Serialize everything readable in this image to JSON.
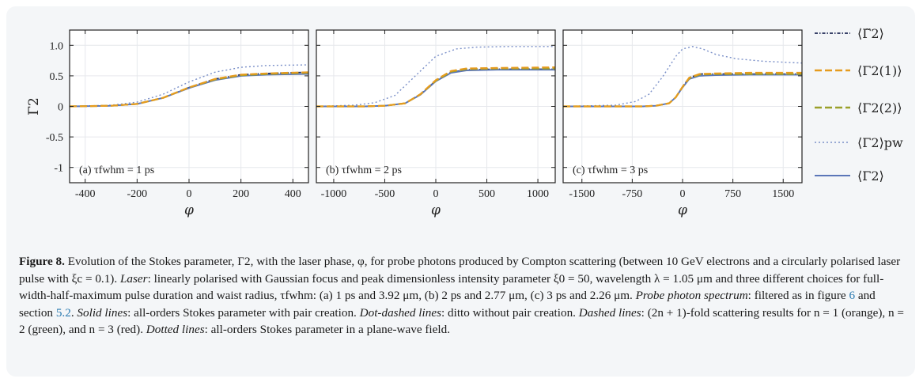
{
  "chart_data": [
    {
      "type": "line",
      "panel_label": "(a) τfwhm = 1 ps",
      "xlabel": "φ",
      "ylabel": "Γ2",
      "xlim": [
        -460,
        460
      ],
      "ylim": [
        -1.25,
        1.25
      ],
      "xticks": [
        -400,
        -200,
        0,
        200,
        400
      ],
      "xtick_labels": [
        "-400",
        "-200",
        "0",
        "200",
        "400"
      ],
      "yticks": [
        -1,
        -0.5,
        0,
        0.5,
        1
      ],
      "ytick_labels": [
        "-1",
        "-0.5",
        "0",
        "0.5",
        "1.0"
      ],
      "series": [
        {
          "name": "⟨Γ̃2⟩",
          "x": [
            -460,
            -300,
            -200,
            -100,
            0,
            100,
            200,
            300,
            460
          ],
          "y": [
            0,
            0.01,
            0.04,
            0.14,
            0.31,
            0.45,
            0.52,
            0.54,
            0.56
          ]
        },
        {
          "name": "⟨Γ2(1)⟩",
          "x": [
            -460,
            -300,
            -200,
            -100,
            0,
            100,
            200,
            300,
            460
          ],
          "y": [
            0,
            0.01,
            0.04,
            0.14,
            0.31,
            0.45,
            0.52,
            0.54,
            0.56
          ]
        },
        {
          "name": "⟨Γ2(2)⟩",
          "x": [
            -460,
            -300,
            -200,
            -100,
            0,
            100,
            200,
            300,
            460
          ],
          "y": [
            0,
            0.01,
            0.04,
            0.14,
            0.31,
            0.44,
            0.51,
            0.53,
            0.55
          ]
        },
        {
          "name": "⟨Γ2⟩pw",
          "x": [
            -460,
            -300,
            -200,
            -100,
            0,
            100,
            200,
            300,
            460
          ],
          "y": [
            0,
            0.02,
            0.07,
            0.2,
            0.4,
            0.56,
            0.64,
            0.67,
            0.68
          ]
        },
        {
          "name": "⟨Γ2⟩",
          "x": [
            -460,
            -300,
            -200,
            -100,
            0,
            100,
            200,
            300,
            460
          ],
          "y": [
            0,
            0.01,
            0.04,
            0.14,
            0.3,
            0.43,
            0.5,
            0.52,
            0.53
          ]
        }
      ]
    },
    {
      "type": "line",
      "panel_label": "(b) τfwhm = 2 ps",
      "xlabel": "φ",
      "ylabel": "",
      "xlim": [
        -1170,
        1170
      ],
      "ylim": [
        -1.25,
        1.25
      ],
      "xticks": [
        -1000,
        -500,
        0,
        500,
        1000
      ],
      "xtick_labels": [
        "-1000",
        "-500",
        "0",
        "500",
        "1000"
      ],
      "yticks": [
        -1,
        -0.5,
        0,
        0.5,
        1
      ],
      "ytick_labels": [],
      "series": [
        {
          "name": "⟨Γ̃2⟩",
          "x": [
            -1170,
            -700,
            -500,
            -300,
            -150,
            0,
            150,
            300,
            600,
            1170
          ],
          "y": [
            0,
            0,
            0.01,
            0.05,
            0.2,
            0.42,
            0.56,
            0.6,
            0.61,
            0.61
          ]
        },
        {
          "name": "⟨Γ2(1)⟩",
          "x": [
            -1170,
            -700,
            -500,
            -300,
            -150,
            0,
            150,
            300,
            600,
            1170
          ],
          "y": [
            0,
            0,
            0.01,
            0.05,
            0.2,
            0.43,
            0.58,
            0.62,
            0.63,
            0.64
          ]
        },
        {
          "name": "⟨Γ2(2)⟩",
          "x": [
            -1170,
            -700,
            -500,
            -300,
            -150,
            0,
            150,
            300,
            600,
            1170
          ],
          "y": [
            0,
            0,
            0.01,
            0.05,
            0.2,
            0.42,
            0.57,
            0.61,
            0.62,
            0.62
          ]
        },
        {
          "name": "⟨Γ2⟩pw",
          "x": [
            -1170,
            -800,
            -600,
            -400,
            -200,
            0,
            200,
            400,
            700,
            1170
          ],
          "y": [
            0,
            0.02,
            0.06,
            0.18,
            0.5,
            0.82,
            0.94,
            0.97,
            0.98,
            0.98
          ]
        },
        {
          "name": "⟨Γ2⟩",
          "x": [
            -1170,
            -700,
            -500,
            -300,
            -150,
            0,
            150,
            300,
            600,
            1170
          ],
          "y": [
            0,
            0,
            0.01,
            0.05,
            0.19,
            0.41,
            0.55,
            0.59,
            0.6,
            0.6
          ]
        }
      ]
    },
    {
      "type": "line",
      "panel_label": "(c) τfwhm = 3 ps",
      "xlabel": "φ",
      "ylabel": "",
      "xlim": [
        -1780,
        1780
      ],
      "ylim": [
        -1.25,
        1.25
      ],
      "xticks": [
        -1500,
        -750,
        0,
        750,
        1500
      ],
      "xtick_labels": [
        "-1500",
        "-750",
        "0",
        "750",
        "1500"
      ],
      "yticks": [
        -1,
        -0.5,
        0,
        0.5,
        1
      ],
      "ytick_labels": [],
      "series": [
        {
          "name": "⟨Γ̃2⟩",
          "x": [
            -1780,
            -600,
            -400,
            -200,
            -100,
            0,
            100,
            250,
            500,
            1000,
            1780
          ],
          "y": [
            0,
            0,
            0.01,
            0.05,
            0.15,
            0.32,
            0.47,
            0.53,
            0.53,
            0.53,
            0.53
          ]
        },
        {
          "name": "⟨Γ2(1)⟩",
          "x": [
            -1780,
            -600,
            -400,
            -200,
            -100,
            0,
            100,
            250,
            500,
            1000,
            1780
          ],
          "y": [
            0,
            0,
            0.01,
            0.05,
            0.15,
            0.32,
            0.47,
            0.53,
            0.54,
            0.55,
            0.55
          ]
        },
        {
          "name": "⟨Γ2(2)⟩",
          "x": [
            -1780,
            -600,
            -400,
            -200,
            -100,
            0,
            100,
            250,
            500,
            1000,
            1780
          ],
          "y": [
            0,
            0,
            0.01,
            0.05,
            0.15,
            0.32,
            0.46,
            0.52,
            0.53,
            0.53,
            0.53
          ]
        },
        {
          "name": "⟨Γ2⟩pw",
          "x": [
            -1780,
            -1000,
            -700,
            -500,
            -300,
            -100,
            0,
            150,
            300,
            500,
            800,
            1200,
            1780
          ],
          "y": [
            0,
            0.02,
            0.08,
            0.2,
            0.48,
            0.82,
            0.94,
            0.98,
            0.94,
            0.85,
            0.78,
            0.74,
            0.71
          ]
        },
        {
          "name": "⟨Γ2⟩",
          "x": [
            -1780,
            -600,
            -400,
            -200,
            -100,
            0,
            100,
            250,
            500,
            1000,
            1780
          ],
          "y": [
            0,
            0,
            0.01,
            0.05,
            0.15,
            0.31,
            0.45,
            0.5,
            0.51,
            0.52,
            0.52
          ]
        }
      ]
    }
  ],
  "legend": [
    {
      "label": "⟨Γ̃2⟩",
      "color": "#1f2a55",
      "dash": "dotdash"
    },
    {
      "label": "⟨Γ2(1)⟩",
      "color": "#e69b1e",
      "dash": "dashed"
    },
    {
      "label": "⟨Γ2(2)⟩",
      "color": "#9aa02a",
      "dash": "dashed"
    },
    {
      "label": "⟨Γ2⟩pw",
      "color": "#7a8fc8",
      "dash": "dotted"
    },
    {
      "label": "⟨Γ2⟩",
      "color": "#5b76b8",
      "dash": "solid"
    }
  ],
  "caption": {
    "label": "Figure 8.",
    "text_1": " Evolution of the Stokes parameter, Γ2, with the laser phase, φ, for probe photons produced by Compton scattering (between 10 GeV electrons and a circularly polarised laser pulse with ξc = 0.1). ",
    "laser_label": "Laser",
    "text_2": ": linearly polarised with Gaussian focus and peak dimensionless intensity parameter ξ0 = 50, wavelength λ = 1.05 μm and three different choices for full-width-half-maximum pulse duration and waist radius, τfwhm: (a) 1 ps and 3.92 μm, (b) 2 ps and 2.77 μm, (c) 3 ps and 2.26 μm. ",
    "spectrum_label": "Probe photon spectrum",
    "text_3": ": filtered as in figure ",
    "ref_figure": "6",
    "text_4": " and section ",
    "ref_section": "5.2",
    "text_5": ". ",
    "solid_label": "Solid lines",
    "text_6": ": all-orders Stokes parameter with pair creation. ",
    "dotdashed_label": "Dot-dashed lines",
    "text_7": ": ditto without pair creation. ",
    "dashed_label": "Dashed lines",
    "text_8": ": (2n + 1)-fold scattering results for n = 1 (orange), n = 2 (green), and n = 3 (red). ",
    "dotted_label": "Dotted lines",
    "text_9": ": all-orders Stokes parameter in a plane-wave field."
  }
}
